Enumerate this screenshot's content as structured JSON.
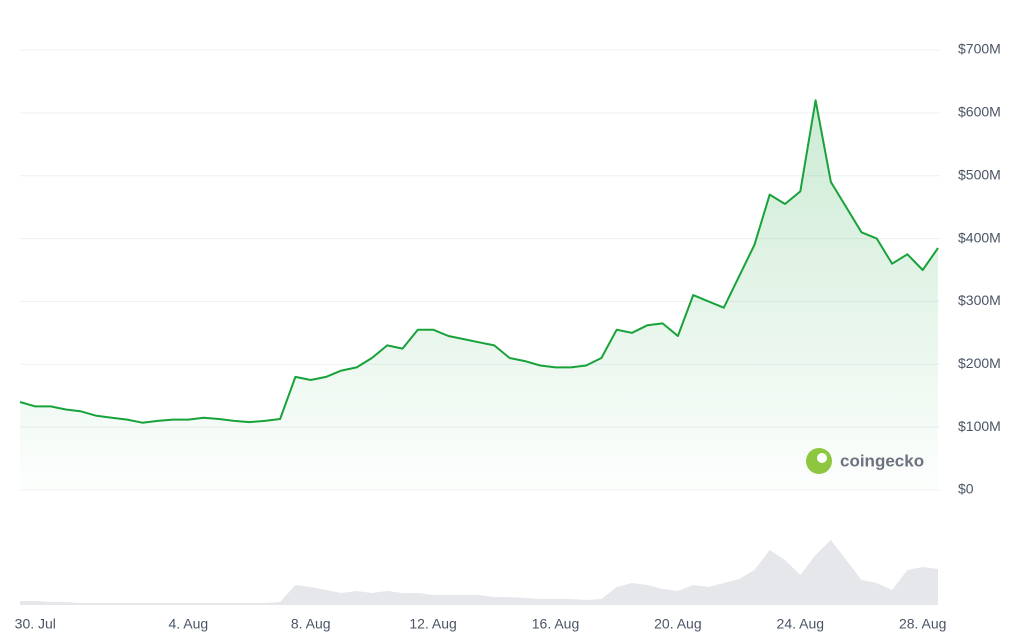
{
  "chart_data": [
    {
      "type": "area-line",
      "color": "#18a23a",
      "grid": true,
      "watermark": "coingecko",
      "categories": [
        null,
        "30. Jul",
        null,
        null,
        null,
        null,
        null,
        null,
        null,
        null,
        null,
        "4. Aug",
        null,
        null,
        null,
        null,
        null,
        null,
        null,
        "8. Aug",
        null,
        null,
        null,
        null,
        null,
        null,
        null,
        "12. Aug",
        null,
        null,
        null,
        null,
        null,
        null,
        null,
        "16. Aug",
        null,
        null,
        null,
        null,
        null,
        null,
        null,
        "20. Aug",
        null,
        null,
        null,
        null,
        null,
        null,
        null,
        "24. Aug",
        null,
        null,
        null,
        null,
        null,
        null,
        null,
        "28. Aug",
        null
      ],
      "values": [
        140,
        133,
        133,
        128,
        125,
        118,
        115,
        112,
        107,
        110,
        112,
        112,
        115,
        113,
        110,
        108,
        110,
        113,
        180,
        175,
        180,
        190,
        195,
        210,
        230,
        225,
        255,
        255,
        245,
        240,
        235,
        230,
        210,
        205,
        198,
        195,
        195,
        198,
        210,
        255,
        250,
        262,
        265,
        245,
        310,
        300,
        290,
        340,
        390,
        470,
        455,
        475,
        620,
        490,
        450,
        410,
        400,
        360,
        375,
        350,
        385
      ],
      "ylim": [
        0,
        700
      ],
      "yticks": [
        {
          "value": 0,
          "label": "$0"
        },
        {
          "value": 100,
          "label": "$100M"
        },
        {
          "value": 200,
          "label": "$200M"
        },
        {
          "value": 300,
          "label": "$300M"
        },
        {
          "value": 400,
          "label": "$400M"
        },
        {
          "value": 500,
          "label": "$500M"
        },
        {
          "value": 600,
          "label": "$600M"
        },
        {
          "value": 700,
          "label": "$700M"
        }
      ]
    },
    {
      "type": "volume-area",
      "color": "#e5e7eb",
      "values": [
        4,
        4,
        3,
        3,
        2,
        2,
        2,
        2,
        2,
        2,
        2,
        2,
        2,
        2,
        2,
        2,
        2,
        3,
        20,
        18,
        15,
        12,
        14,
        12,
        14,
        12,
        12,
        10,
        10,
        10,
        10,
        8,
        8,
        7,
        6,
        6,
        6,
        5,
        6,
        18,
        22,
        20,
        16,
        14,
        20,
        18,
        22,
        26,
        35,
        55,
        45,
        30,
        50,
        65,
        45,
        25,
        22,
        15,
        35,
        38,
        36
      ],
      "ylim": [
        0,
        70
      ]
    }
  ]
}
